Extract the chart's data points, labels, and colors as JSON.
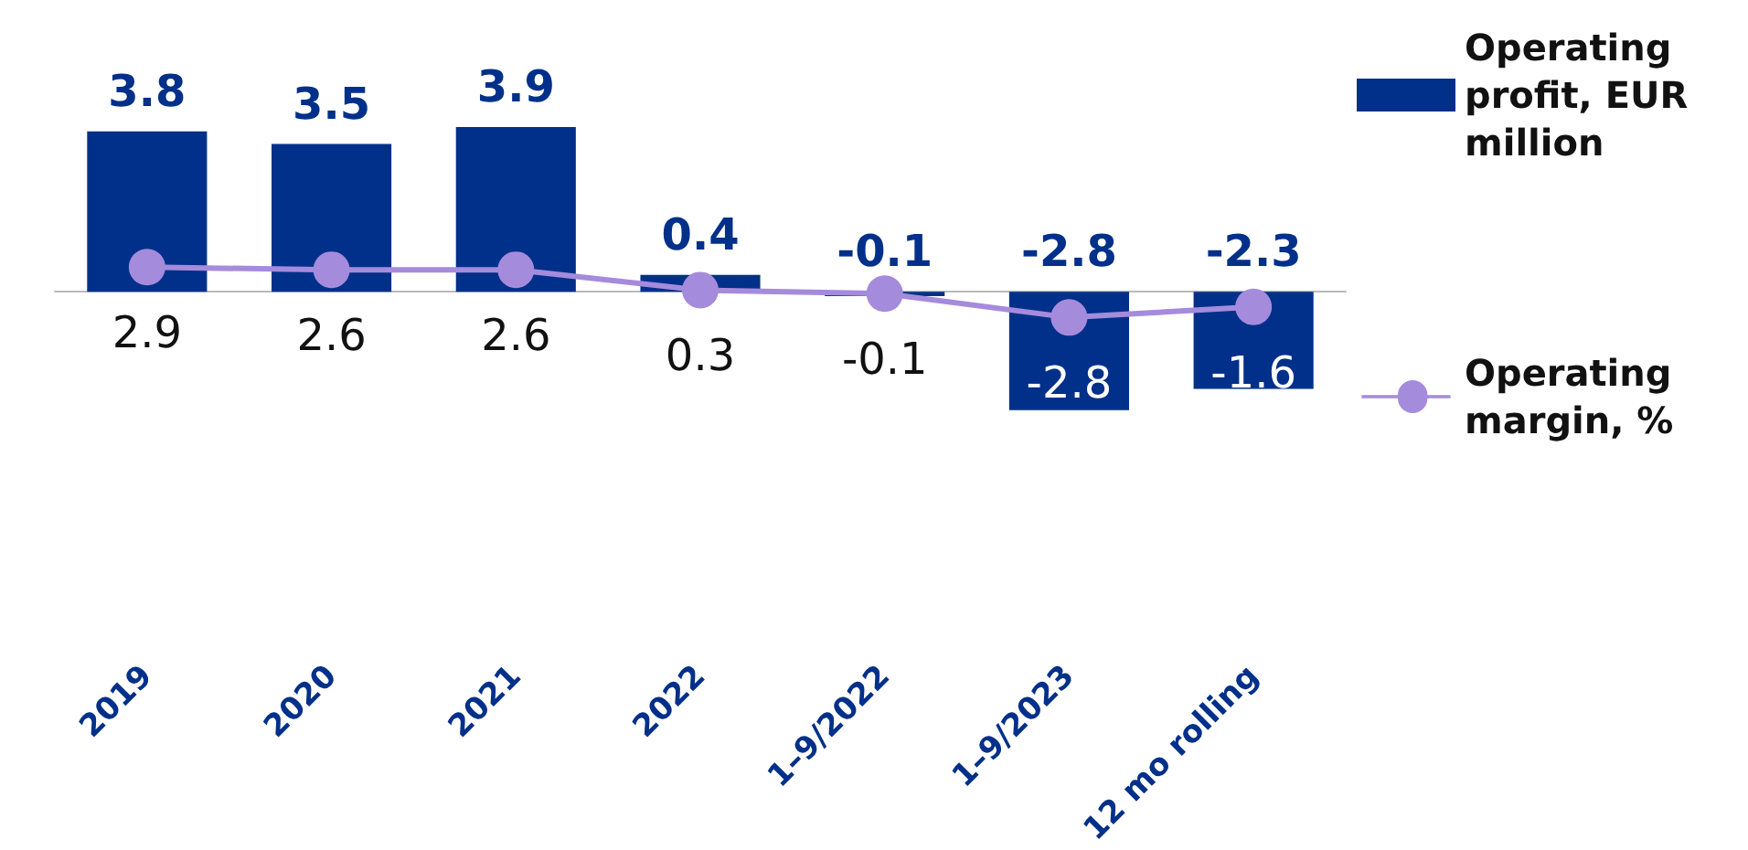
{
  "chart_data": {
    "type": "bar",
    "categories": [
      "2019",
      "2020",
      "2021",
      "2022",
      "1–9/2022",
      "1–9/2023",
      "12 mo rolling"
    ],
    "series": [
      {
        "name": "Operating profit, EUR million",
        "color": "#00308a",
        "values": [
          3.8,
          3.5,
          3.9,
          0.4,
          -0.1,
          -2.8,
          -2.3
        ]
      },
      {
        "name": "Operating margin, %",
        "type": "line",
        "axis": "y2",
        "color": "#a58bdc",
        "marker": "circle",
        "line_style": "solid",
        "values": [
          2.9,
          2.6,
          2.6,
          0.3,
          -0.1,
          -2.8,
          -1.6
        ]
      }
    ],
    "tick_labels": "x",
    "data_labels": true,
    "grid": false,
    "legend": "right"
  }
}
